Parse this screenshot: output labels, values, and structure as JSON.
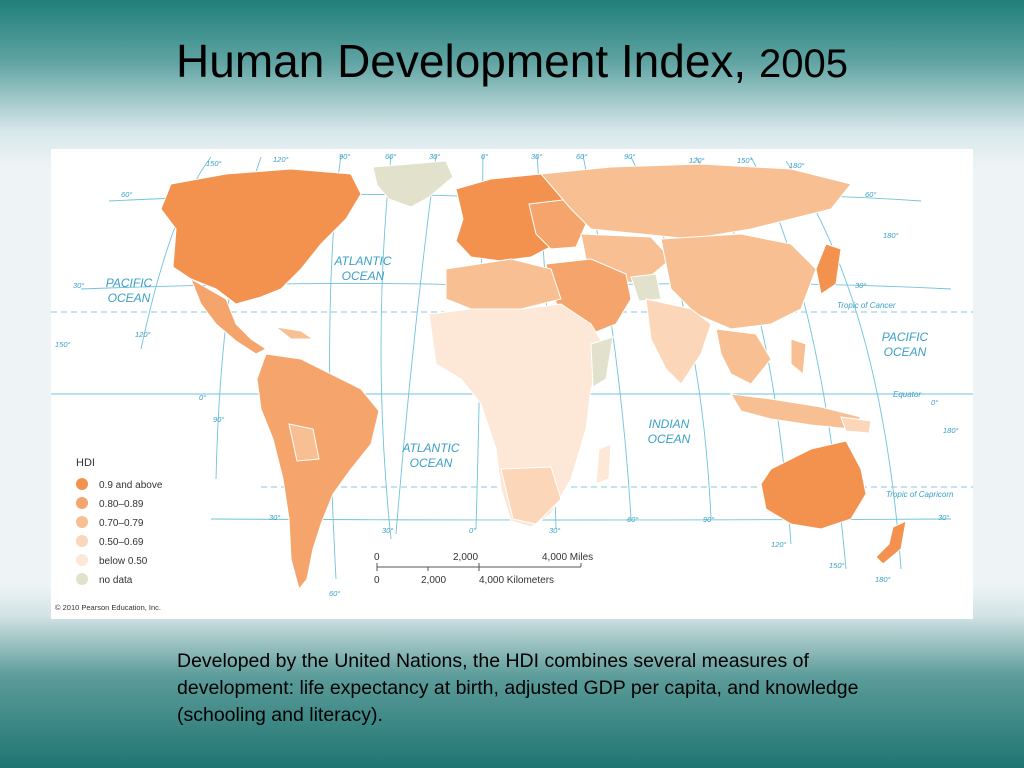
{
  "slide": {
    "title": "Human Development Index,",
    "title_year": "2005",
    "caption": "Developed by the United Nations, the HDI combines several measures of development: life expectancy at birth, adjusted GDP per capita, and knowledge (schooling and literacy)."
  },
  "map": {
    "copyright": "© 2010 Pearson Education, Inc.",
    "oceans": {
      "atlantic_north": [
        "ATLANTIC",
        "OCEAN"
      ],
      "atlantic_south": [
        "ATLANTIC",
        "OCEAN"
      ],
      "pacific_east": [
        "PACIFIC",
        "OCEAN"
      ],
      "pacific_west": [
        "PACIFIC",
        "OCEAN"
      ],
      "indian": [
        "INDIAN",
        "OCEAN"
      ]
    },
    "reference_lines": {
      "tropic_cancer": "Tropic of Cancer",
      "equator": "Equator",
      "tropic_capricorn": "Tropic of Capricorn"
    },
    "graticule_labels": {
      "top": [
        "150°",
        "120°",
        "90°",
        "60°",
        "30°",
        "0°",
        "30°",
        "60°",
        "90°",
        "120°",
        "150°",
        "180°"
      ],
      "left": [
        "60°",
        "30°",
        "150°",
        "120°",
        "0°",
        "90°"
      ],
      "right": [
        "60°",
        "180°",
        "30°",
        "0°",
        "180°",
        "30°"
      ],
      "bottom": [
        "30°",
        "60°",
        "30°",
        "0°",
        "30°",
        "60°",
        "90°",
        "120°",
        "150°",
        "180°"
      ]
    },
    "legend": {
      "title": "HDI",
      "items": [
        {
          "label": "0.9 and above",
          "color": "#f2924e"
        },
        {
          "label": "0.80–0.89",
          "color": "#f5a56b"
        },
        {
          "label": "0.70–0.79",
          "color": "#f8bf93"
        },
        {
          "label": "0.50–0.69",
          "color": "#fbd6b9"
        },
        {
          "label": "below 0.50",
          "color": "#fde8d8"
        },
        {
          "label": "no data",
          "color": "#e2e2cc"
        }
      ]
    },
    "scale": {
      "miles": [
        "0",
        "2,000",
        "4,000 Miles"
      ],
      "km": [
        "0",
        "2,000",
        "4,000 Kilometers"
      ]
    }
  }
}
